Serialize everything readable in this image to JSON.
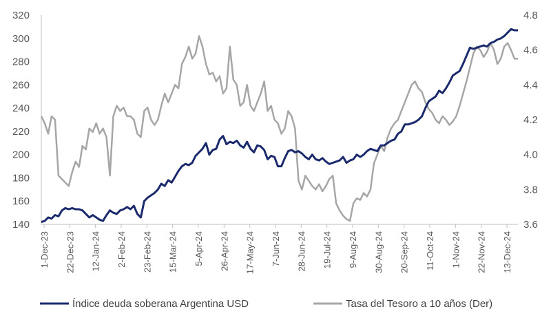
{
  "chart_data": {
    "type": "line",
    "title": "",
    "xlabel": "",
    "ylabel": "",
    "categories": [
      "1-Dec-23",
      "22-Dec-23",
      "12-Jan-24",
      "2-Feb-24",
      "23-Feb-24",
      "15-Mar-24",
      "5-Apr-24",
      "26-Apr-24",
      "17-May-24",
      "7-Jun-24",
      "28-Jun-24",
      "19-Jul-24",
      "9-Aug-24",
      "30-Aug-24",
      "20-Sep-24",
      "11-Oct-24",
      "1-Nov-24",
      "22-Nov-24",
      "13-Dec-24"
    ],
    "y_left": {
      "min": 140,
      "max": 320,
      "ticks": [
        "140",
        "160",
        "180",
        "200",
        "220",
        "240",
        "260",
        "280",
        "300",
        "320"
      ]
    },
    "y_right": {
      "min": 3.6,
      "max": 4.8,
      "ticks": [
        "3.6",
        "3.8",
        "4.0",
        "4.2",
        "4.4",
        "4.6",
        "4.8"
      ]
    },
    "legend_position": "bottom",
    "series": [
      {
        "name": "Índice deuda soberana Argentina USD",
        "axis": "left",
        "color": "#1a2a6c",
        "values": [
          [
            0,
            142
          ],
          [
            1,
            143
          ],
          [
            2,
            146
          ],
          [
            3,
            145
          ],
          [
            4,
            148
          ],
          [
            5,
            147
          ],
          [
            6,
            152
          ],
          [
            7,
            154
          ],
          [
            8,
            153
          ],
          [
            9,
            154
          ],
          [
            10,
            153
          ],
          [
            11,
            153
          ],
          [
            12,
            152
          ],
          [
            13,
            149
          ],
          [
            14,
            146
          ],
          [
            15,
            148
          ],
          [
            16,
            146
          ],
          [
            17,
            144
          ],
          [
            18,
            143
          ],
          [
            19,
            148
          ],
          [
            20,
            152
          ],
          [
            21,
            150
          ],
          [
            22,
            149
          ],
          [
            23,
            152
          ],
          [
            24,
            153
          ],
          [
            25,
            155
          ],
          [
            26,
            153
          ],
          [
            27,
            156
          ],
          [
            28,
            149
          ],
          [
            29,
            146
          ],
          [
            30,
            160
          ],
          [
            31,
            163
          ],
          [
            32,
            165
          ],
          [
            33,
            167
          ],
          [
            34,
            170
          ],
          [
            35,
            175
          ],
          [
            36,
            173
          ],
          [
            37,
            178
          ],
          [
            38,
            176
          ],
          [
            39,
            181
          ],
          [
            40,
            186
          ],
          [
            41,
            190
          ],
          [
            42,
            192
          ],
          [
            43,
            191
          ],
          [
            44,
            193
          ],
          [
            45,
            199
          ],
          [
            46,
            202
          ],
          [
            47,
            205
          ],
          [
            48,
            210
          ],
          [
            49,
            200
          ],
          [
            50,
            204
          ],
          [
            51,
            205
          ],
          [
            52,
            213
          ],
          [
            53,
            216
          ],
          [
            54,
            209
          ],
          [
            55,
            211
          ],
          [
            56,
            210
          ],
          [
            57,
            212
          ],
          [
            58,
            208
          ],
          [
            59,
            206
          ],
          [
            60,
            211
          ],
          [
            61,
            205
          ],
          [
            62,
            202
          ],
          [
            63,
            208
          ],
          [
            64,
            207
          ],
          [
            65,
            204
          ],
          [
            66,
            196
          ],
          [
            67,
            199
          ],
          [
            68,
            198
          ],
          [
            69,
            190
          ],
          [
            70,
            190
          ],
          [
            71,
            197
          ],
          [
            72,
            203
          ],
          [
            73,
            204
          ],
          [
            74,
            202
          ],
          [
            75,
            203
          ],
          [
            76,
            201
          ],
          [
            77,
            198
          ],
          [
            78,
            196
          ],
          [
            79,
            200
          ],
          [
            80,
            196
          ],
          [
            81,
            195
          ],
          [
            82,
            197
          ],
          [
            83,
            194
          ],
          [
            84,
            192
          ],
          [
            85,
            193
          ],
          [
            86,
            194
          ],
          [
            87,
            195
          ],
          [
            88,
            198
          ],
          [
            89,
            193
          ],
          [
            90,
            195
          ],
          [
            91,
            196
          ],
          [
            92,
            200
          ],
          [
            93,
            198
          ],
          [
            94,
            200
          ],
          [
            95,
            203
          ],
          [
            96,
            205
          ],
          [
            97,
            204
          ],
          [
            98,
            203
          ],
          [
            99,
            208
          ],
          [
            100,
            208
          ],
          [
            101,
            210
          ],
          [
            102,
            212
          ],
          [
            103,
            213
          ],
          [
            104,
            218
          ],
          [
            105,
            220
          ],
          [
            106,
            226
          ],
          [
            107,
            226
          ],
          [
            108,
            227
          ],
          [
            109,
            228
          ],
          [
            110,
            230
          ],
          [
            111,
            233
          ],
          [
            112,
            240
          ],
          [
            113,
            246
          ],
          [
            114,
            248
          ],
          [
            115,
            250
          ],
          [
            116,
            255
          ],
          [
            117,
            253
          ],
          [
            118,
            257
          ],
          [
            119,
            262
          ],
          [
            120,
            268
          ],
          [
            121,
            270
          ],
          [
            122,
            272
          ],
          [
            123,
            278
          ],
          [
            124,
            285
          ],
          [
            125,
            292
          ],
          [
            126,
            291
          ],
          [
            127,
            292
          ],
          [
            128,
            293
          ],
          [
            129,
            294
          ],
          [
            130,
            293
          ],
          [
            131,
            296
          ],
          [
            132,
            297
          ],
          [
            133,
            299
          ],
          [
            134,
            300
          ],
          [
            135,
            302
          ],
          [
            136,
            305
          ],
          [
            137,
            308
          ],
          [
            138,
            307
          ],
          [
            139,
            307
          ]
        ]
      },
      {
        "name": "Tasa del Tesoro a 10 años (Der)",
        "axis": "right",
        "color": "#a6a6a6",
        "values": [
          [
            0,
            4.22
          ],
          [
            1,
            4.18
          ],
          [
            2,
            4.12
          ],
          [
            3,
            4.22
          ],
          [
            4,
            4.2
          ],
          [
            5,
            3.88
          ],
          [
            6,
            3.86
          ],
          [
            7,
            3.84
          ],
          [
            8,
            3.82
          ],
          [
            9,
            3.9
          ],
          [
            10,
            3.96
          ],
          [
            11,
            3.93
          ],
          [
            12,
            4.05
          ],
          [
            13,
            4.03
          ],
          [
            14,
            4.15
          ],
          [
            15,
            4.13
          ],
          [
            16,
            4.18
          ],
          [
            17,
            4.12
          ],
          [
            18,
            4.15
          ],
          [
            19,
            4.1
          ],
          [
            20,
            3.88
          ],
          [
            21,
            4.22
          ],
          [
            22,
            4.28
          ],
          [
            23,
            4.25
          ],
          [
            24,
            4.27
          ],
          [
            25,
            4.22
          ],
          [
            26,
            4.22
          ],
          [
            27,
            4.2
          ],
          [
            28,
            4.12
          ],
          [
            29,
            4.1
          ],
          [
            30,
            4.25
          ],
          [
            31,
            4.27
          ],
          [
            32,
            4.2
          ],
          [
            33,
            4.17
          ],
          [
            34,
            4.2
          ],
          [
            35,
            4.28
          ],
          [
            36,
            4.35
          ],
          [
            37,
            4.3
          ],
          [
            38,
            4.35
          ],
          [
            39,
            4.4
          ],
          [
            40,
            4.38
          ],
          [
            41,
            4.52
          ],
          [
            42,
            4.56
          ],
          [
            43,
            4.62
          ],
          [
            44,
            4.55
          ],
          [
            45,
            4.58
          ],
          [
            46,
            4.68
          ],
          [
            47,
            4.62
          ],
          [
            48,
            4.52
          ],
          [
            49,
            4.46
          ],
          [
            50,
            4.47
          ],
          [
            51,
            4.42
          ],
          [
            52,
            4.45
          ],
          [
            53,
            4.35
          ],
          [
            54,
            4.38
          ],
          [
            55,
            4.62
          ],
          [
            56,
            4.43
          ],
          [
            57,
            4.4
          ],
          [
            58,
            4.28
          ],
          [
            59,
            4.3
          ],
          [
            60,
            4.4
          ],
          [
            61,
            4.28
          ],
          [
            62,
            4.25
          ],
          [
            63,
            4.3
          ],
          [
            64,
            4.35
          ],
          [
            65,
            4.42
          ],
          [
            66,
            4.25
          ],
          [
            67,
            4.28
          ],
          [
            68,
            4.2
          ],
          [
            69,
            4.18
          ],
          [
            70,
            4.12
          ],
          [
            71,
            4.15
          ],
          [
            72,
            4.25
          ],
          [
            73,
            4.22
          ],
          [
            74,
            4.15
          ],
          [
            75,
            3.85
          ],
          [
            76,
            3.8
          ],
          [
            77,
            3.88
          ],
          [
            78,
            3.85
          ],
          [
            79,
            3.82
          ],
          [
            80,
            3.8
          ],
          [
            81,
            3.83
          ],
          [
            82,
            3.79
          ],
          [
            83,
            3.82
          ],
          [
            84,
            3.86
          ],
          [
            85,
            3.88
          ],
          [
            86,
            3.72
          ],
          [
            87,
            3.68
          ],
          [
            88,
            3.65
          ],
          [
            89,
            3.63
          ],
          [
            90,
            3.62
          ],
          [
            91,
            3.72
          ],
          [
            92,
            3.75
          ],
          [
            93,
            3.74
          ],
          [
            94,
            3.78
          ],
          [
            95,
            3.76
          ],
          [
            96,
            3.8
          ],
          [
            97,
            3.95
          ],
          [
            98,
            4.0
          ],
          [
            99,
            4.05
          ],
          [
            100,
            4.02
          ],
          [
            101,
            4.1
          ],
          [
            102,
            4.15
          ],
          [
            103,
            4.18
          ],
          [
            104,
            4.2
          ],
          [
            105,
            4.25
          ],
          [
            106,
            4.3
          ],
          [
            107,
            4.35
          ],
          [
            108,
            4.4
          ],
          [
            109,
            4.42
          ],
          [
            110,
            4.38
          ],
          [
            111,
            4.36
          ],
          [
            112,
            4.3
          ],
          [
            113,
            4.26
          ],
          [
            114,
            4.24
          ],
          [
            115,
            4.2
          ],
          [
            116,
            4.18
          ],
          [
            117,
            4.22
          ],
          [
            118,
            4.2
          ],
          [
            119,
            4.17
          ],
          [
            120,
            4.19
          ],
          [
            121,
            4.22
          ],
          [
            122,
            4.28
          ],
          [
            123,
            4.35
          ],
          [
            124,
            4.42
          ],
          [
            125,
            4.5
          ],
          [
            126,
            4.58
          ],
          [
            127,
            4.62
          ],
          [
            128,
            4.6
          ],
          [
            129,
            4.56
          ],
          [
            130,
            4.59
          ],
          [
            131,
            4.64
          ],
          [
            132,
            4.6
          ],
          [
            133,
            4.52
          ],
          [
            134,
            4.55
          ],
          [
            135,
            4.62
          ],
          [
            136,
            4.64
          ],
          [
            137,
            4.6
          ],
          [
            138,
            4.55
          ],
          [
            139,
            4.55
          ]
        ]
      }
    ]
  }
}
